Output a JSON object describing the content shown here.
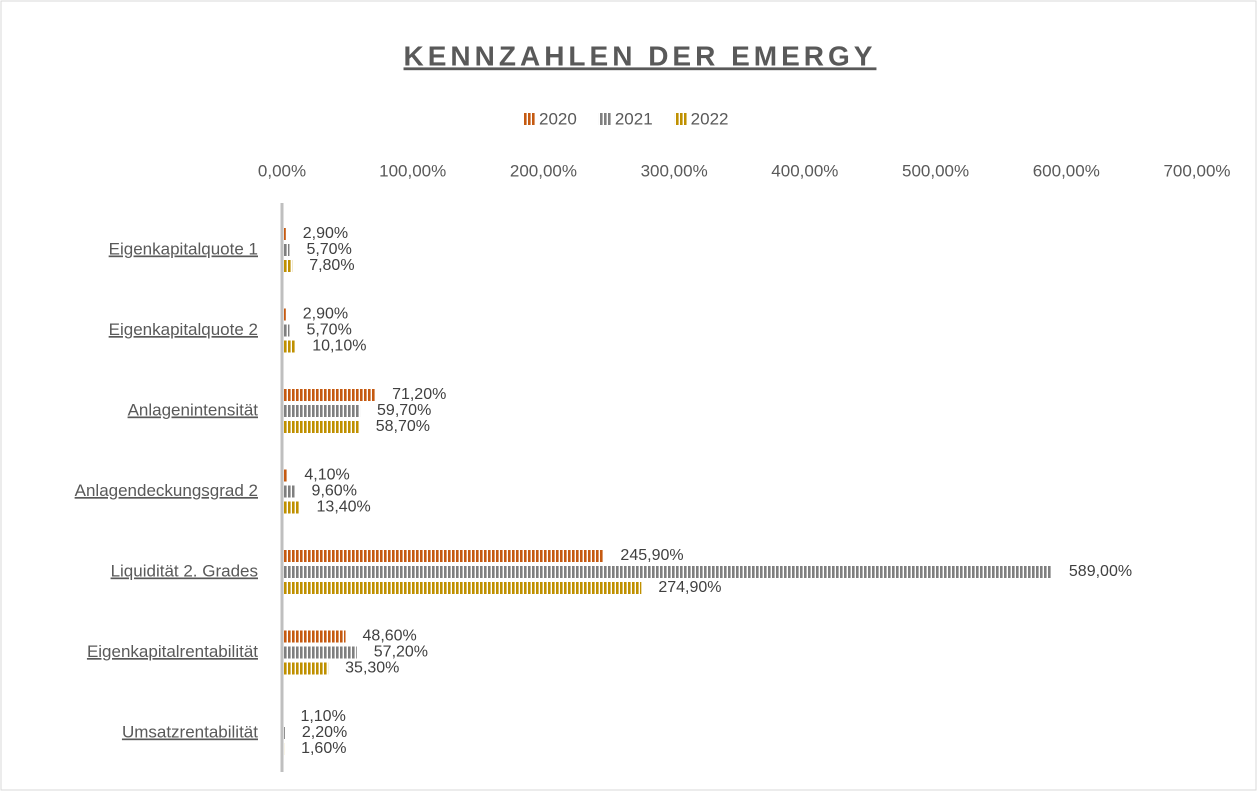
{
  "chart_data": {
    "type": "bar",
    "orientation": "horizontal",
    "title": "KENNZAHLEN DER EMERGY",
    "categories": [
      "Eigenkapitalquote 1",
      "Eigenkapitalquote 2",
      "Anlagenintensität",
      "Anlagendeckungsgrad 2",
      "Liquidität 2. Grades",
      "Eigenkapitalrentabilität",
      "Umsatzrentabilität"
    ],
    "series": [
      {
        "name": "2020",
        "color": "#c55a11",
        "values": [
          2.9,
          2.9,
          71.2,
          4.1,
          245.9,
          48.6,
          1.1
        ],
        "value_labels": [
          "2,90%",
          "2,90%",
          "71,20%",
          "4,10%",
          "245,90%",
          "48,60%",
          "1,10%"
        ]
      },
      {
        "name": "2021",
        "color": "#7f7f7f",
        "values": [
          5.7,
          5.7,
          59.7,
          9.6,
          589.0,
          57.2,
          2.2
        ],
        "value_labels": [
          "5,70%",
          "5,70%",
          "59,70%",
          "9,60%",
          "589,00%",
          "57,20%",
          "2,20%"
        ]
      },
      {
        "name": "2022",
        "color": "#bf9000",
        "values": [
          7.8,
          10.1,
          58.7,
          13.4,
          274.9,
          35.3,
          1.6
        ],
        "value_labels": [
          "7,80%",
          "10,10%",
          "58,70%",
          "13,40%",
          "274,90%",
          "35,30%",
          "1,60%"
        ]
      }
    ],
    "xlim": [
      0,
      700
    ],
    "xticks": [
      {
        "value": 0,
        "label": "0,00%"
      },
      {
        "value": 100,
        "label": "100,00%"
      },
      {
        "value": 200,
        "label": "200,00%"
      },
      {
        "value": 300,
        "label": "300,00%"
      },
      {
        "value": 400,
        "label": "400,00%"
      },
      {
        "value": 500,
        "label": "500,00%"
      },
      {
        "value": 600,
        "label": "600,00%"
      },
      {
        "value": 700,
        "label": "700,00%"
      }
    ],
    "legend": "top",
    "pattern": "vertical-stripes"
  }
}
